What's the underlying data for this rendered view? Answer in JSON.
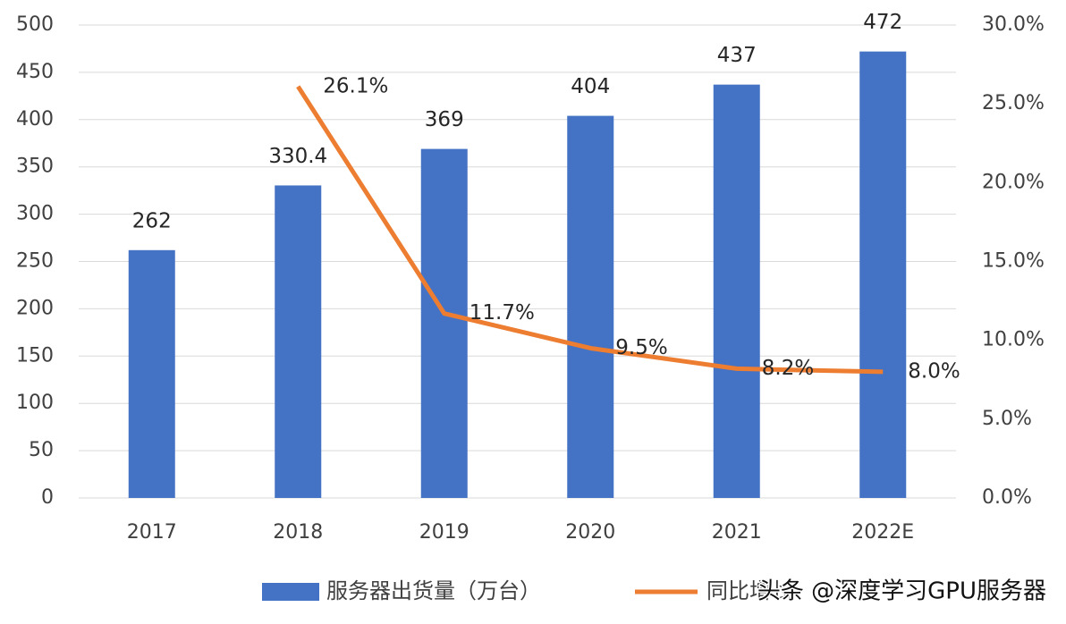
{
  "chart_data": {
    "type": "bar-line",
    "categories": [
      "2017",
      "2018",
      "2019",
      "2020",
      "2021",
      "2022E"
    ],
    "series": [
      {
        "name": "服务器出货量（万台）",
        "type": "bar",
        "color": "#4472c4",
        "values": [
          262,
          330.4,
          369,
          404,
          437,
          472
        ]
      },
      {
        "name": "同比增长",
        "type": "line",
        "axis": "y2",
        "color": "#ed7d31",
        "values": [
          null,
          26.1,
          11.7,
          9.5,
          8.2,
          8.0
        ],
        "value_labels": [
          null,
          "26.1%",
          "11.7%",
          "9.5%",
          "8.2%",
          "8.0%"
        ]
      }
    ],
    "ylim": [
      0,
      500
    ],
    "yticks": [
      0,
      50,
      100,
      150,
      200,
      250,
      300,
      350,
      400,
      450,
      500
    ],
    "y2lim": [
      0,
      30
    ],
    "y2ticks": [
      {
        "value": 0,
        "label": "0.0%"
      },
      {
        "value": 5,
        "label": "5.0%"
      },
      {
        "value": 10,
        "label": "10.0%"
      },
      {
        "value": 15,
        "label": "15.0%"
      },
      {
        "value": 20,
        "label": "20.0%"
      },
      {
        "value": 25,
        "label": "25.0%"
      },
      {
        "value": 30,
        "label": "30.0%"
      }
    ],
    "grid": true,
    "annotation": "头条 @深度学习GPU服务器"
  }
}
